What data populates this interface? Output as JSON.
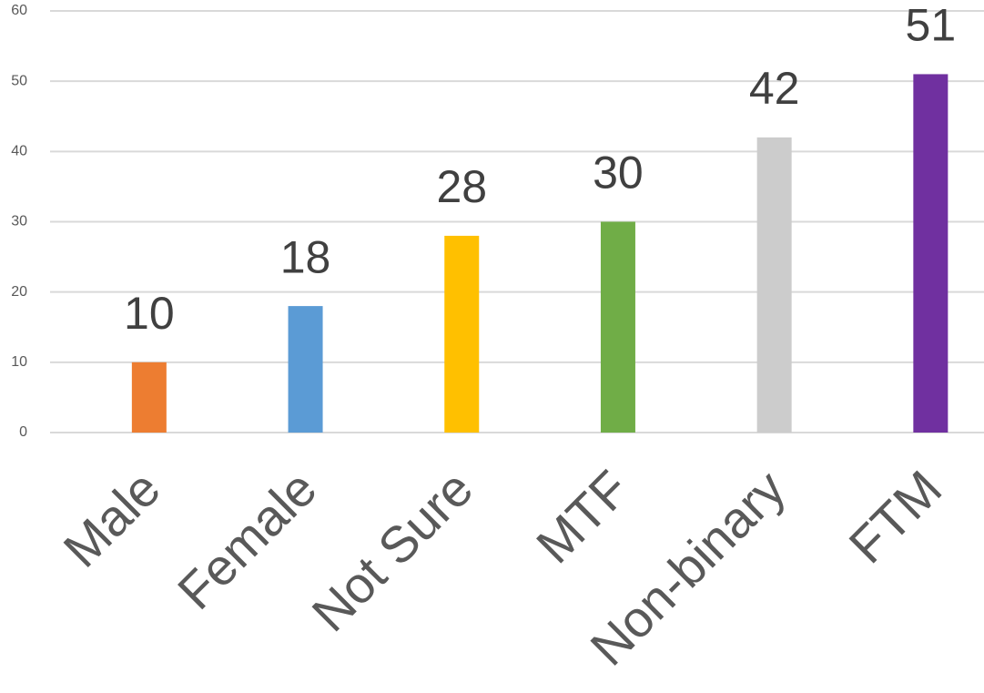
{
  "chart_data": {
    "type": "bar",
    "categories": [
      "Male",
      "Female",
      "Not Sure",
      "MTF",
      "Non-binary",
      "FTM"
    ],
    "values": [
      10,
      18,
      28,
      30,
      42,
      51
    ],
    "colors": [
      "#ed7d31",
      "#5b9bd5",
      "#ffc000",
      "#70ad47",
      "#cccccc",
      "#7030a0"
    ],
    "ylim": [
      0,
      60
    ],
    "yticks": [
      0,
      10,
      20,
      30,
      40,
      50,
      60
    ],
    "grid": true
  }
}
